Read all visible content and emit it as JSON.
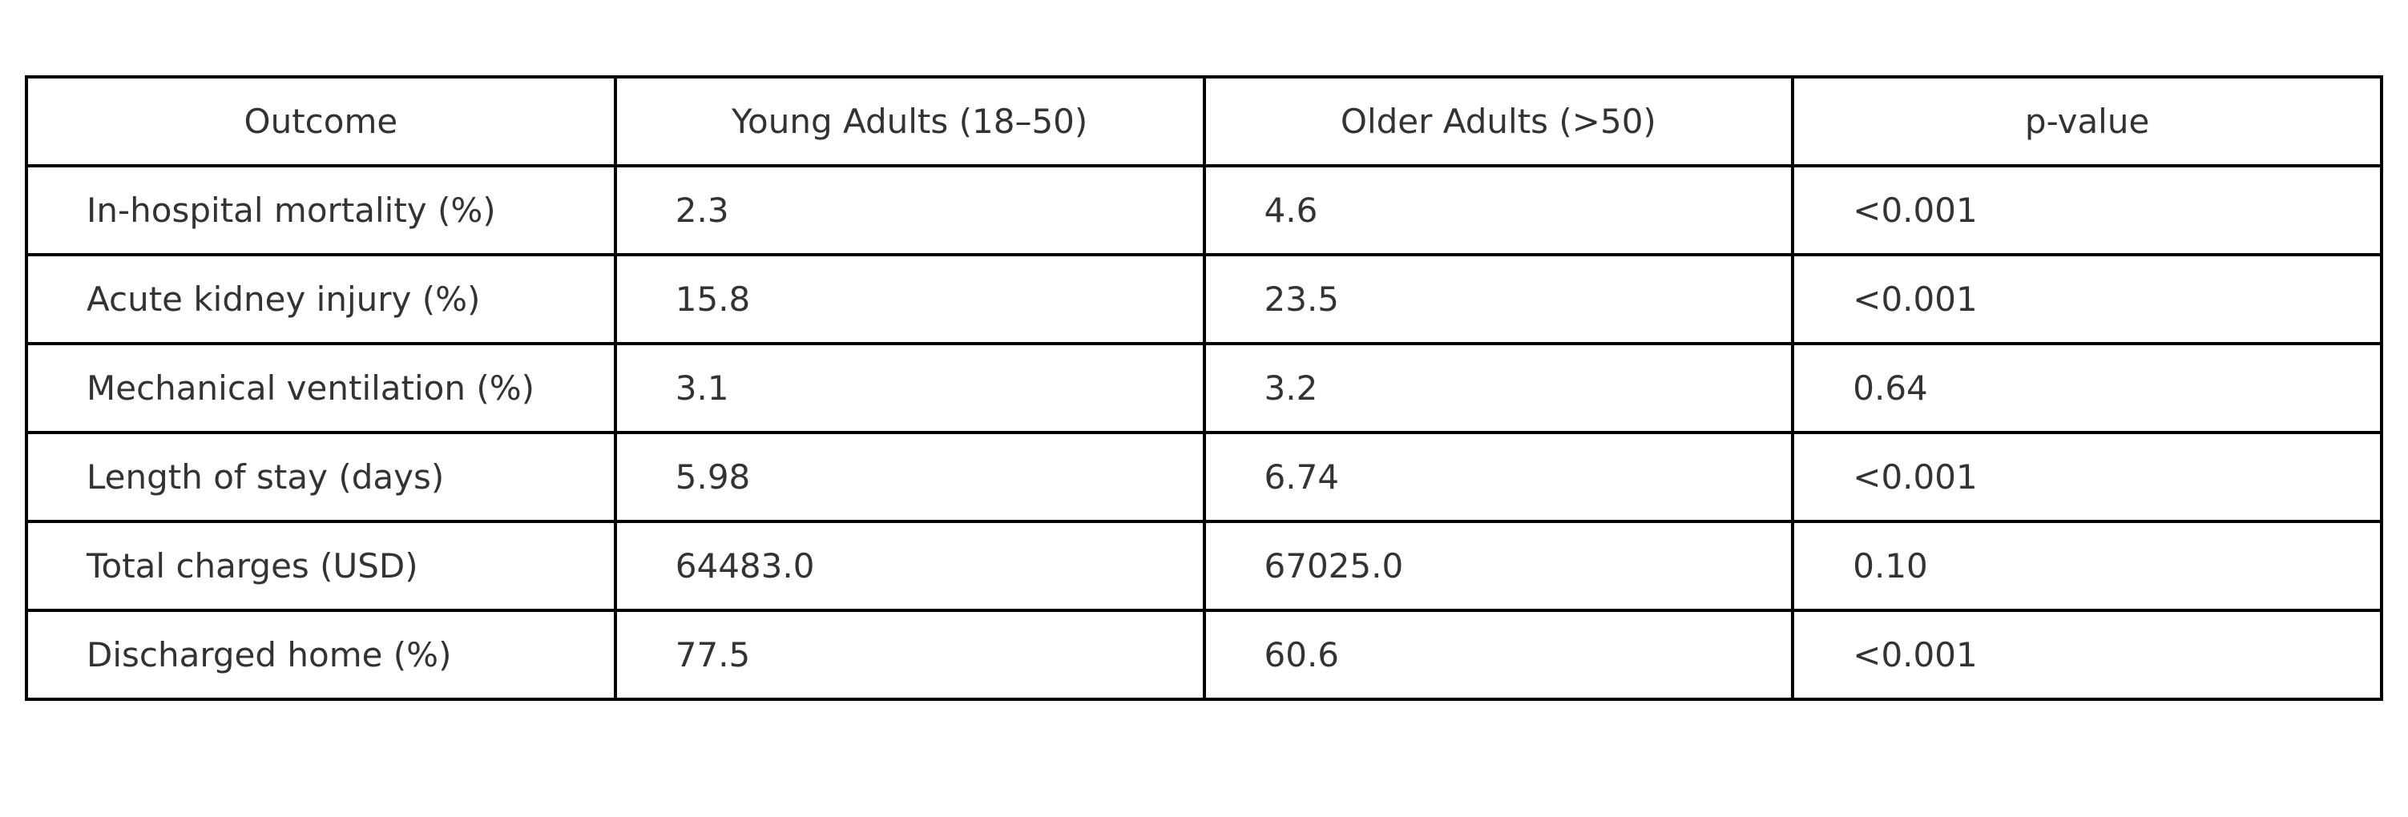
{
  "table": {
    "header": [
      "Outcome",
      "Young Adults (18–50)",
      "Older Adults (>50)",
      "p-value"
    ],
    "rows": [
      [
        "In-hospital mortality (%)",
        "2.3",
        "4.6",
        "<0.001"
      ],
      [
        "Acute kidney injury (%)",
        "15.8",
        "23.5",
        "<0.001"
      ],
      [
        "Mechanical ventilation (%)",
        "3.1",
        "3.2",
        "0.64"
      ],
      [
        "Length of stay (days)",
        "5.98",
        "6.74",
        "<0.001"
      ],
      [
        "Total charges (USD)",
        "64483.0",
        "67025.0",
        "0.10"
      ],
      [
        "Discharged home (%)",
        "77.5",
        "60.6",
        "<0.001"
      ]
    ]
  }
}
